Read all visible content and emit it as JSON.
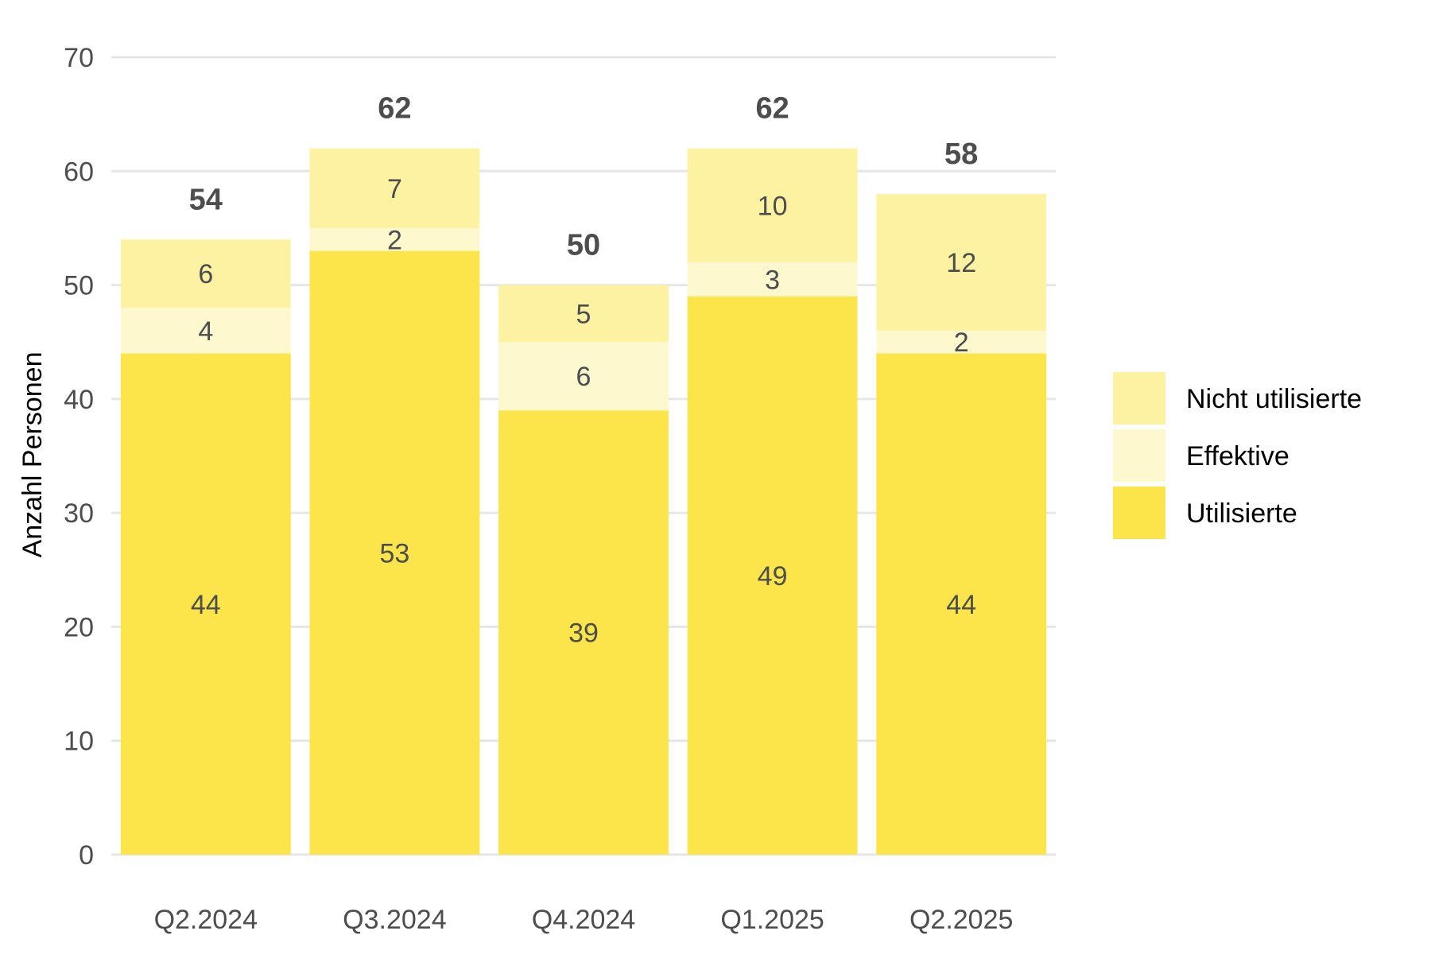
{
  "chart_data": {
    "type": "bar",
    "stacked": true,
    "categories": [
      "Q2.2024",
      "Q3.2024",
      "Q4.2024",
      "Q1.2025",
      "Q2.2025"
    ],
    "series": [
      {
        "name": "Utilisierte",
        "values": [
          44,
          53,
          39,
          49,
          44
        ],
        "color": "#fbe54a"
      },
      {
        "name": "Effektive",
        "values": [
          4,
          2,
          6,
          3,
          2
        ],
        "color": "#fef8cf"
      },
      {
        "name": "Nicht utilisierte",
        "values": [
          6,
          7,
          5,
          10,
          12
        ],
        "color": "#fdf2a1"
      }
    ],
    "totals": [
      54,
      62,
      50,
      62,
      58
    ],
    "ylabel": "Anzahl Personen",
    "ylim": [
      0,
      70
    ],
    "yticks": [
      0,
      10,
      20,
      30,
      40,
      50,
      60,
      70
    ],
    "grid": "horizontal",
    "legend": {
      "position": "right",
      "order": [
        "Nicht utilisierte",
        "Effektive",
        "Utilisierte"
      ]
    }
  }
}
